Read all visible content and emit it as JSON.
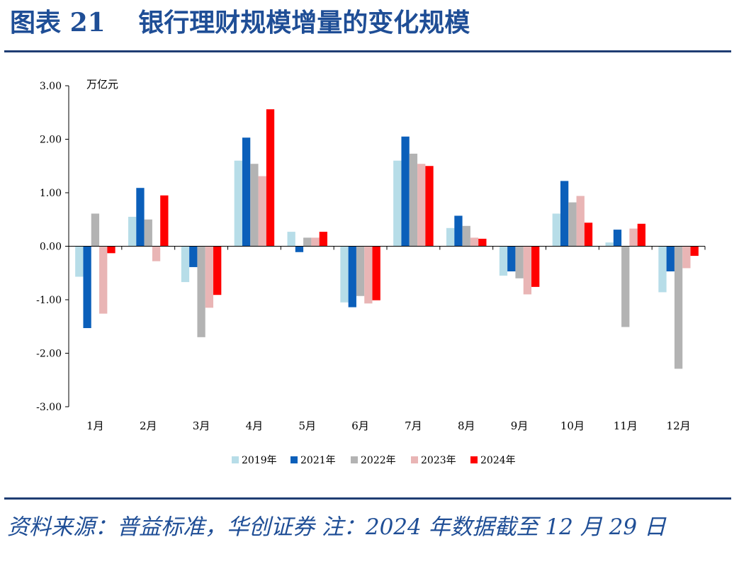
{
  "title": {
    "label": "图表",
    "number": "21",
    "text": "银行理财规模增量的变化规模"
  },
  "source_note": "资料来源：普益标准，华创证券  注：2024 年数据截至 12 月 29 日",
  "colors": {
    "title": "#1f4e96",
    "rule": "#1f3d73",
    "series": [
      "#b7dde8",
      "#0b5fba",
      "#b3b3b3",
      "#e9b5b5",
      "#ff0000"
    ]
  },
  "chart_data": {
    "type": "bar",
    "unit_label": "万亿元",
    "ylim": [
      -3,
      3
    ],
    "yticks": [
      -3,
      -2,
      -1,
      0,
      1,
      2,
      3
    ],
    "ytick_labels": [
      "-3.00",
      "-2.00",
      "-1.00",
      "0.00",
      "1.00",
      "2.00",
      "3.00"
    ],
    "grid": false,
    "legend_position": "bottom",
    "categories": [
      "1月",
      "2月",
      "3月",
      "4月",
      "5月",
      "6月",
      "7月",
      "8月",
      "9月",
      "10月",
      "11月",
      "12月"
    ],
    "series": [
      {
        "name": "2019年",
        "color": "#b7dde8",
        "values": [
          -0.57,
          0.55,
          -0.67,
          1.6,
          0.27,
          -1.05,
          1.6,
          0.34,
          -0.55,
          0.61,
          0.07,
          -0.86
        ]
      },
      {
        "name": "2021年",
        "color": "#0b5fba",
        "values": [
          -1.53,
          1.09,
          -0.39,
          2.03,
          -0.11,
          -1.14,
          2.05,
          0.57,
          -0.47,
          1.22,
          0.31,
          -0.47
        ]
      },
      {
        "name": "2022年",
        "color": "#b3b3b3",
        "values": [
          0.61,
          0.5,
          -1.7,
          1.54,
          0.16,
          -0.93,
          1.73,
          0.38,
          -0.6,
          0.82,
          -1.51,
          -2.29
        ]
      },
      {
        "name": "2023年",
        "color": "#e9b5b5",
        "values": [
          -1.26,
          -0.28,
          -1.15,
          1.31,
          0.16,
          -1.07,
          1.54,
          0.16,
          -0.9,
          0.94,
          0.33,
          -0.41
        ]
      },
      {
        "name": "2024年",
        "color": "#ff0000",
        "values": [
          -0.13,
          0.95,
          -0.91,
          2.56,
          0.27,
          -1.01,
          1.5,
          0.14,
          -0.76,
          0.44,
          0.42,
          -0.18
        ]
      }
    ]
  }
}
